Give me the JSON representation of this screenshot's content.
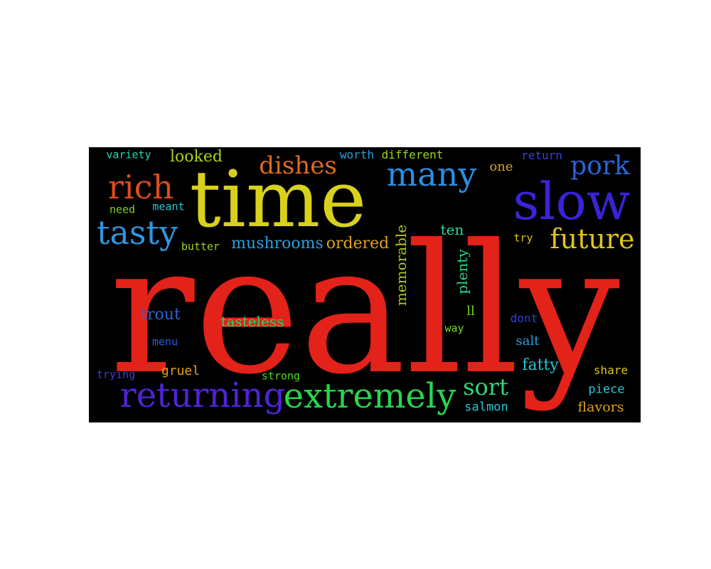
{
  "wordcloud": {
    "words": [
      {
        "text": "really",
        "color": "#e32219"
      },
      {
        "text": "time",
        "color": "#d8d11c"
      },
      {
        "text": "slow",
        "color": "#3a23d8"
      },
      {
        "text": "returning",
        "color": "#4f24d6"
      },
      {
        "text": "extremely",
        "color": "#27d64a"
      },
      {
        "text": "many",
        "color": "#2b8ee3"
      },
      {
        "text": "rich",
        "color": "#dc4c1c"
      },
      {
        "text": "tasty",
        "color": "#2f95e0"
      },
      {
        "text": "dishes",
        "color": "#de6b1c"
      },
      {
        "text": "pork",
        "color": "#2a63d9"
      },
      {
        "text": "future",
        "color": "#e0c51c"
      },
      {
        "text": "sort",
        "color": "#2fd87b"
      },
      {
        "text": "looked",
        "color": "#a7d21c"
      },
      {
        "text": "variety",
        "color": "#27d6b0"
      },
      {
        "text": "worth",
        "color": "#2a9fe0"
      },
      {
        "text": "different",
        "color": "#9bd61c"
      },
      {
        "text": "one",
        "color": "#e0a11c"
      },
      {
        "text": "return",
        "color": "#3b3fd9"
      },
      {
        "text": "need",
        "color": "#7bd81c"
      },
      {
        "text": "meant",
        "color": "#27c6d6"
      },
      {
        "text": "ten",
        "color": "#2fd8a0"
      },
      {
        "text": "try",
        "color": "#e0c51c"
      },
      {
        "text": "butter",
        "color": "#9bd61c"
      },
      {
        "text": "mushrooms",
        "color": "#2aa0dc"
      },
      {
        "text": "ordered",
        "color": "#e0a11c"
      },
      {
        "text": "memorable",
        "color": "#b8c81c"
      },
      {
        "text": "plenty",
        "color": "#27d68a"
      },
      {
        "text": "trout",
        "color": "#2a63d9"
      },
      {
        "text": "tasteless",
        "color": "#27d66a"
      },
      {
        "text": "ll",
        "color": "#6fd81c"
      },
      {
        "text": "dont",
        "color": "#2a43d9"
      },
      {
        "text": "way",
        "color": "#7bd81c"
      },
      {
        "text": "menu",
        "color": "#2a5fd9"
      },
      {
        "text": "salt",
        "color": "#2aa0dc"
      },
      {
        "text": "fatty",
        "color": "#27c6d6"
      },
      {
        "text": "trying",
        "color": "#3b3fd9"
      },
      {
        "text": "gruel",
        "color": "#e0a11c"
      },
      {
        "text": "strong",
        "color": "#4fd81c"
      },
      {
        "text": "share",
        "color": "#e0c51c"
      },
      {
        "text": "piece",
        "color": "#27c6d6"
      },
      {
        "text": "salmon",
        "color": "#27c6d6"
      },
      {
        "text": "flavors",
        "color": "#e0a11c"
      }
    ]
  }
}
